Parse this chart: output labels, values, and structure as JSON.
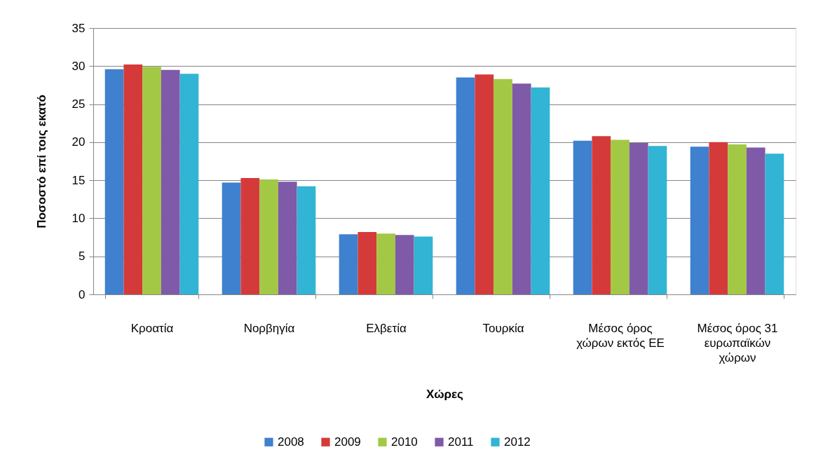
{
  "chart_data": {
    "type": "bar",
    "xlabel": "Χώρες",
    "ylabel": "Ποσοστό επί τοις εκατό",
    "categories": [
      "Κροατία",
      "Νορβηγία",
      "Ελβετία",
      "Τουρκία",
      "Μέσος όρος χώρων εκτός ΕΕ",
      "Μέσος όρος 31 ευρωπαϊκών χώρων"
    ],
    "series": [
      {
        "name": "2008",
        "color": "#3f80cf",
        "values": [
          29.6,
          14.7,
          7.9,
          28.5,
          20.2,
          19.4
        ]
      },
      {
        "name": "2009",
        "color": "#d53a3a",
        "values": [
          30.2,
          15.3,
          8.2,
          28.9,
          20.8,
          20.0
        ]
      },
      {
        "name": "2010",
        "color": "#a3c845",
        "values": [
          29.9,
          15.1,
          8.0,
          28.3,
          20.3,
          19.7
        ]
      },
      {
        "name": "2011",
        "color": "#7f5aa8",
        "values": [
          29.5,
          14.8,
          7.8,
          27.7,
          19.9,
          19.3
        ]
      },
      {
        "name": "2012",
        "color": "#32b4d4",
        "values": [
          29.0,
          14.2,
          7.6,
          27.2,
          19.5,
          18.5
        ]
      }
    ],
    "ylim": [
      0,
      35
    ],
    "yticks": [
      0,
      5,
      10,
      15,
      20,
      25,
      30,
      35
    ],
    "grid": "y",
    "legend": "bottom"
  }
}
